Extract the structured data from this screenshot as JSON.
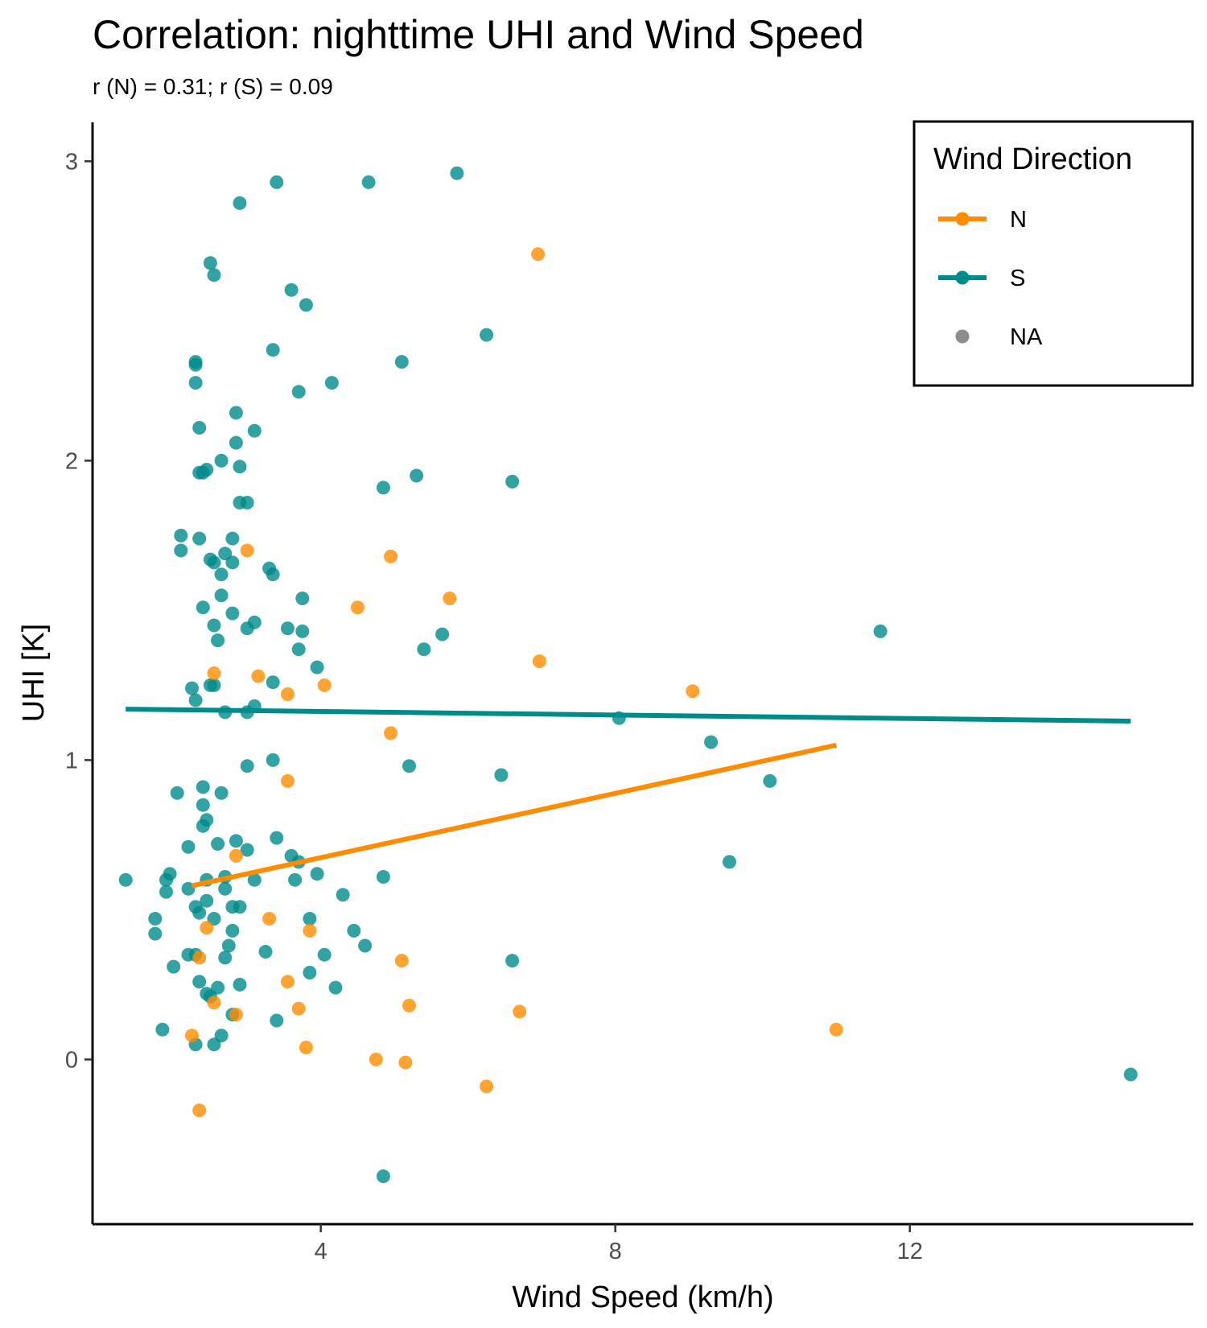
{
  "chart_data": {
    "type": "scatter",
    "title": "Correlation: nighttime UHI and Wind Speed",
    "subtitle": "r (N) = 0.31; r (S) = 0.09",
    "xlabel": "Wind Speed (km/h)",
    "ylabel": "UHI [K]",
    "xlim": [
      0.9,
      15.85
    ],
    "ylim": [
      -0.55,
      3.13
    ],
    "x_ticks": [
      4,
      8,
      12
    ],
    "x_tick_labels": [
      "4",
      "8",
      "12"
    ],
    "y_ticks": [
      0,
      1,
      2,
      3
    ],
    "y_tick_labels": [
      "0",
      "1",
      "2",
      "3"
    ],
    "grid": false,
    "legend": {
      "title": "Wind Direction",
      "placement": "top-right",
      "entries": [
        {
          "label": "N",
          "color": "#ff8c00",
          "line": true
        },
        {
          "label": "S",
          "color": "#008b8b",
          "line": true
        },
        {
          "label": "NA",
          "color": "#8c8c8c",
          "line": false
        }
      ]
    },
    "series": [
      {
        "name": "N",
        "color": "#ff8c00",
        "points": [
          [
            6.95,
            2.69
          ],
          [
            3.0,
            1.7
          ],
          [
            4.95,
            1.68
          ],
          [
            4.5,
            1.51
          ],
          [
            5.75,
            1.54
          ],
          [
            6.97,
            1.33
          ],
          [
            2.55,
            1.29
          ],
          [
            3.15,
            1.28
          ],
          [
            4.05,
            1.25
          ],
          [
            3.55,
            1.22
          ],
          [
            9.05,
            1.23
          ],
          [
            4.95,
            1.09
          ],
          [
            3.55,
            0.93
          ],
          [
            2.85,
            0.68
          ],
          [
            3.3,
            0.47
          ],
          [
            2.45,
            0.44
          ],
          [
            3.85,
            0.43
          ],
          [
            5.1,
            0.33
          ],
          [
            2.35,
            0.34
          ],
          [
            3.55,
            0.26
          ],
          [
            2.55,
            0.19
          ],
          [
            3.7,
            0.17
          ],
          [
            5.2,
            0.18
          ],
          [
            6.7,
            0.16
          ],
          [
            2.85,
            0.15
          ],
          [
            2.25,
            0.08
          ],
          [
            11.0,
            0.1
          ],
          [
            3.8,
            0.04
          ],
          [
            4.75,
            0.0
          ],
          [
            5.15,
            -0.01
          ],
          [
            6.25,
            -0.09
          ],
          [
            2.35,
            -0.17
          ]
        ],
        "trend": {
          "x": [
            2.25,
            11.0
          ],
          "y": [
            0.58,
            1.05
          ]
        }
      },
      {
        "name": "S",
        "color": "#008b8b",
        "points": [
          [
            5.85,
            2.96
          ],
          [
            3.4,
            2.93
          ],
          [
            4.65,
            2.93
          ],
          [
            2.9,
            2.86
          ],
          [
            2.5,
            2.66
          ],
          [
            2.55,
            2.62
          ],
          [
            3.6,
            2.57
          ],
          [
            3.8,
            2.52
          ],
          [
            6.25,
            2.42
          ],
          [
            3.35,
            2.37
          ],
          [
            5.1,
            2.33
          ],
          [
            2.3,
            2.32
          ],
          [
            2.3,
            2.33
          ],
          [
            2.3,
            2.26
          ],
          [
            4.15,
            2.26
          ],
          [
            3.7,
            2.23
          ],
          [
            2.85,
            2.16
          ],
          [
            2.35,
            2.11
          ],
          [
            3.1,
            2.1
          ],
          [
            2.85,
            2.06
          ],
          [
            2.65,
            2.0
          ],
          [
            2.9,
            1.98
          ],
          [
            2.35,
            1.96
          ],
          [
            2.4,
            1.96
          ],
          [
            2.45,
            1.97
          ],
          [
            5.3,
            1.95
          ],
          [
            6.6,
            1.93
          ],
          [
            4.85,
            1.91
          ],
          [
            2.9,
            1.86
          ],
          [
            3.0,
            1.86
          ],
          [
            2.1,
            1.75
          ],
          [
            2.35,
            1.74
          ],
          [
            2.8,
            1.74
          ],
          [
            2.1,
            1.7
          ],
          [
            2.7,
            1.69
          ],
          [
            2.5,
            1.67
          ],
          [
            2.55,
            1.66
          ],
          [
            2.8,
            1.66
          ],
          [
            3.3,
            1.64
          ],
          [
            3.35,
            1.62
          ],
          [
            2.65,
            1.62
          ],
          [
            2.65,
            1.55
          ],
          [
            3.75,
            1.54
          ],
          [
            2.4,
            1.51
          ],
          [
            2.8,
            1.49
          ],
          [
            3.1,
            1.46
          ],
          [
            2.55,
            1.45
          ],
          [
            3.0,
            1.44
          ],
          [
            3.55,
            1.44
          ],
          [
            3.75,
            1.43
          ],
          [
            5.65,
            1.42
          ],
          [
            11.6,
            1.43
          ],
          [
            2.6,
            1.4
          ],
          [
            5.4,
            1.37
          ],
          [
            3.7,
            1.37
          ],
          [
            3.95,
            1.31
          ],
          [
            3.35,
            1.26
          ],
          [
            2.55,
            1.25
          ],
          [
            2.5,
            1.25
          ],
          [
            2.25,
            1.24
          ],
          [
            2.3,
            1.2
          ],
          [
            3.1,
            1.18
          ],
          [
            3.0,
            1.16
          ],
          [
            2.7,
            1.16
          ],
          [
            8.05,
            1.14
          ],
          [
            9.3,
            1.06
          ],
          [
            3.35,
            1.0
          ],
          [
            5.2,
            0.98
          ],
          [
            3.0,
            0.98
          ],
          [
            6.45,
            0.95
          ],
          [
            10.1,
            0.93
          ],
          [
            2.4,
            0.91
          ],
          [
            2.65,
            0.89
          ],
          [
            2.05,
            0.89
          ],
          [
            2.4,
            0.85
          ],
          [
            2.45,
            0.8
          ],
          [
            2.4,
            0.78
          ],
          [
            3.4,
            0.74
          ],
          [
            2.85,
            0.73
          ],
          [
            2.6,
            0.72
          ],
          [
            2.2,
            0.71
          ],
          [
            3.0,
            0.7
          ],
          [
            3.6,
            0.68
          ],
          [
            3.7,
            0.66
          ],
          [
            9.55,
            0.66
          ],
          [
            3.95,
            0.62
          ],
          [
            1.95,
            0.62
          ],
          [
            2.7,
            0.61
          ],
          [
            3.65,
            0.6
          ],
          [
            4.85,
            0.61
          ],
          [
            1.35,
            0.6
          ],
          [
            1.9,
            0.6
          ],
          [
            2.45,
            0.6
          ],
          [
            3.1,
            0.6
          ],
          [
            2.7,
            0.57
          ],
          [
            2.2,
            0.57
          ],
          [
            1.9,
            0.56
          ],
          [
            4.3,
            0.55
          ],
          [
            2.45,
            0.53
          ],
          [
            2.3,
            0.51
          ],
          [
            2.8,
            0.51
          ],
          [
            2.9,
            0.51
          ],
          [
            2.35,
            0.49
          ],
          [
            1.75,
            0.47
          ],
          [
            2.55,
            0.47
          ],
          [
            3.85,
            0.47
          ],
          [
            1.75,
            0.42
          ],
          [
            2.8,
            0.43
          ],
          [
            4.45,
            0.43
          ],
          [
            2.75,
            0.38
          ],
          [
            4.6,
            0.38
          ],
          [
            3.25,
            0.36
          ],
          [
            2.2,
            0.35
          ],
          [
            2.3,
            0.35
          ],
          [
            2.7,
            0.34
          ],
          [
            4.05,
            0.35
          ],
          [
            6.6,
            0.33
          ],
          [
            2.0,
            0.31
          ],
          [
            3.85,
            0.29
          ],
          [
            2.35,
            0.26
          ],
          [
            2.9,
            0.25
          ],
          [
            2.6,
            0.24
          ],
          [
            4.2,
            0.24
          ],
          [
            2.45,
            0.22
          ],
          [
            2.5,
            0.21
          ],
          [
            2.8,
            0.15
          ],
          [
            3.4,
            0.13
          ],
          [
            1.85,
            0.1
          ],
          [
            2.65,
            0.08
          ],
          [
            2.3,
            0.05
          ],
          [
            2.55,
            0.05
          ],
          [
            15.0,
            -0.05
          ],
          [
            4.85,
            -0.39
          ]
        ],
        "trend": {
          "x": [
            1.35,
            15.0
          ],
          "y": [
            1.17,
            1.13
          ]
        }
      }
    ]
  }
}
